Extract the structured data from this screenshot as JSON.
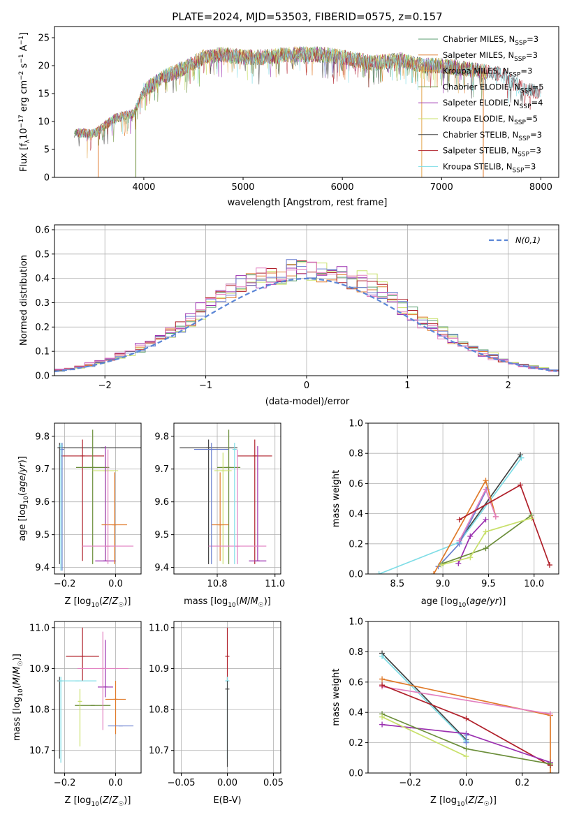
{
  "page": {
    "title": "PLATE=2024, MJD=53503, FIBERID=0575, z=0.157"
  },
  "chart_data": [
    {
      "id": "spectrum",
      "type": "line",
      "title": "PLATE=2024, MJD=53503, FIBERID=0575, z=0.157",
      "xlabel": "wavelength [Angstrom, rest frame]",
      "ylabel": "Flux [f_λ 10^-17 erg cm^-2 s^-1 A^-1]",
      "xlim": [
        3100,
        8180
      ],
      "ylim": [
        0,
        27
      ],
      "xticks": [
        4000,
        5000,
        6000,
        7000,
        8000
      ],
      "yticks": [
        0,
        5,
        10,
        15,
        20,
        25
      ],
      "continuum": {
        "x": [
          3300,
          3500,
          3700,
          3900,
          4000,
          4200,
          4400,
          4600,
          4800,
          5000,
          5200,
          5500,
          5800,
          6000,
          6300,
          6600,
          6800,
          7000,
          7200,
          7400,
          7600,
          7800,
          8000
        ],
        "y": [
          8.0,
          7.8,
          10.5,
          11.5,
          15.5,
          18.0,
          19.5,
          21.5,
          22.0,
          21.5,
          21.5,
          22.0,
          22.0,
          21.5,
          20.5,
          21.0,
          20.0,
          20.0,
          19.5,
          19.0,
          18.5,
          16.0,
          15.0
        ]
      },
      "legend": {
        "position": "upper-right",
        "entries": [
          {
            "pre": "Chabrier MILES, N",
            "sub": "SSP",
            "post": "=3",
            "color": "#5a9e6f"
          },
          {
            "pre": "Salpeter MILES, N",
            "sub": "SSP",
            "post": "=3",
            "color": "#e07a2a"
          },
          {
            "pre": "Kroupa MILES, N",
            "sub": "SSP",
            "post": "=3",
            "color": "#e3a64d"
          },
          {
            "pre": "Chabrier ELODIE, N",
            "sub": "SSP",
            "post": "=5",
            "color": "#6b8e3a"
          },
          {
            "pre": "Salpeter ELODIE, N",
            "sub": "SSP",
            "post": "=4",
            "color": "#9b30b0"
          },
          {
            "pre": "Kroupa ELODIE, N",
            "sub": "SSP",
            "post": "=5",
            "color": "#c8e06a"
          },
          {
            "pre": "Chabrier STELIB, N",
            "sub": "SSP",
            "post": "=3",
            "color": "#444444"
          },
          {
            "pre": "Salpeter STELIB, N",
            "sub": "SSP",
            "post": "=3",
            "color": "#b0202a"
          },
          {
            "pre": "Kroupa STELIB, N",
            "sub": "SSP",
            "post": "=3",
            "color": "#7fdde6"
          }
        ]
      }
    },
    {
      "id": "residuals",
      "type": "line",
      "xlabel": "(data-model)/error",
      "ylabel": "Normed distribution",
      "xlim": [
        -2.5,
        2.5
      ],
      "ylim": [
        0,
        0.62
      ],
      "xticks": [
        -2,
        -1,
        0,
        1,
        2
      ],
      "yticks": [
        0.0,
        0.1,
        0.2,
        0.3,
        0.4,
        0.5,
        0.6
      ],
      "grid": true,
      "legend": {
        "position": "upper-right",
        "label": "N(0,1)",
        "color": "#5b86d6"
      },
      "bin_width": 0.1,
      "histograms": [
        {
          "color": "#e07a2a",
          "offset": 0.03
        },
        {
          "color": "#5a9e6f",
          "offset": -0.02
        },
        {
          "color": "#9b30b0",
          "offset": 0.05
        },
        {
          "color": "#c8e06a",
          "offset": -0.04
        },
        {
          "color": "#b0202a",
          "offset": 0.02
        },
        {
          "color": "#6a7fcf",
          "offset": -0.01
        },
        {
          "color": "#e27fc0",
          "offset": 0.04
        }
      ]
    },
    {
      "id": "age-vs-z",
      "type": "scatter",
      "xlabel": "Z [log10(Z/Z☉)]",
      "ylabel": "age [log10(age/yr)]",
      "xlim": [
        -0.24,
        0.1
      ],
      "ylim": [
        9.38,
        9.84
      ],
      "xticks": [
        -0.2,
        0.0
      ],
      "yticks": [
        9.4,
        9.5,
        9.6,
        9.7,
        9.8
      ],
      "points": [
        {
          "x": -0.22,
          "y": 9.765,
          "xerr": 0.0,
          "yerr": [
            9.41,
            9.78
          ],
          "color": "#444444"
        },
        {
          "x": -0.05,
          "y": 9.765,
          "xerr": 0.17,
          "yerr": [
            9.765,
            9.765
          ],
          "color": "#444444"
        },
        {
          "x": -0.13,
          "y": 9.74,
          "xerr": 0.085,
          "yerr": [
            9.42,
            9.79
          ],
          "color": "#b0202a"
        },
        {
          "x": -0.09,
          "y": 9.705,
          "xerr": 0.065,
          "yerr": [
            9.41,
            9.82
          ],
          "color": "#6b8e3a"
        },
        {
          "x": -0.04,
          "y": 9.695,
          "xerr": 0.05,
          "yerr": [
            9.42,
            9.75
          ],
          "color": "#c8e06a"
        },
        {
          "x": -0.04,
          "y": 9.42,
          "xerr": 0.04,
          "yerr": [
            9.42,
            9.77
          ],
          "color": "#9b30b0"
        },
        {
          "x": -0.005,
          "y": 9.53,
          "xerr": 0.05,
          "yerr": [
            9.41,
            9.69
          ],
          "color": "#e07a2a"
        },
        {
          "x": -0.03,
          "y": 9.465,
          "xerr": 0.1,
          "yerr": [
            9.41,
            9.76
          ],
          "color": "#e27fc0"
        },
        {
          "x": -0.21,
          "y": 9.76,
          "xerr": 0.0,
          "yerr": [
            9.39,
            9.78
          ],
          "color": "#6a7fcf"
        },
        {
          "x": -0.215,
          "y": 9.77,
          "xerr": 0.0,
          "yerr": [
            9.39,
            9.78
          ],
          "color": "#7fdde6"
        }
      ]
    },
    {
      "id": "age-vs-mass",
      "type": "scatter",
      "xlabel": "mass [log10(M/M☉)]",
      "ylabel": "",
      "xlim": [
        10.65,
        11.02
      ],
      "ylim": [
        9.38,
        9.84
      ],
      "xticks": [
        10.8,
        11.0
      ],
      "yticks": [
        9.4,
        9.5,
        9.6,
        9.7,
        9.8
      ],
      "points": [
        {
          "x": 10.77,
          "y": 9.765,
          "xerr": 0.1,
          "yerr": [
            9.41,
            9.79
          ],
          "color": "#444444"
        },
        {
          "x": 10.93,
          "y": 9.74,
          "xerr": 0.06,
          "yerr": [
            9.41,
            9.79
          ],
          "color": "#b0202a"
        },
        {
          "x": 10.84,
          "y": 9.705,
          "xerr": 0.04,
          "yerr": [
            9.41,
            9.82
          ],
          "color": "#6b8e3a"
        },
        {
          "x": 10.82,
          "y": 9.695,
          "xerr": 0.03,
          "yerr": [
            9.41,
            9.75
          ],
          "color": "#c8e06a"
        },
        {
          "x": 10.94,
          "y": 9.42,
          "xerr": 0.03,
          "yerr": [
            9.42,
            9.77
          ],
          "color": "#9b30b0"
        },
        {
          "x": 10.81,
          "y": 9.53,
          "xerr": 0.03,
          "yerr": [
            9.42,
            9.69
          ],
          "color": "#e07a2a"
        },
        {
          "x": 10.87,
          "y": 9.465,
          "xerr": 0.1,
          "yerr": [
            9.41,
            9.76
          ],
          "color": "#e27fc0"
        },
        {
          "x": 10.78,
          "y": 9.76,
          "xerr": 0.06,
          "yerr": [
            9.41,
            9.78
          ],
          "color": "#6a7fcf"
        },
        {
          "x": 10.86,
          "y": 9.76,
          "xerr": 0.0,
          "yerr": [
            9.41,
            9.78
          ],
          "color": "#7fdde6"
        }
      ]
    },
    {
      "id": "weight-vs-age",
      "type": "line",
      "xlabel": "age [log10(age/yr)]",
      "ylabel": "mass weight",
      "xlim": [
        8.18,
        10.27
      ],
      "ylim": [
        0.0,
        1.0
      ],
      "xticks": [
        8.5,
        9.0,
        9.5,
        10.0
      ],
      "yticks": [
        0.0,
        0.2,
        0.4,
        0.6,
        0.8,
        1.0
      ],
      "grid": true,
      "series": [
        {
          "color": "#444444",
          "x": [
            9.18,
            9.85
          ],
          "y": [
            0.22,
            0.79
          ]
        },
        {
          "color": "#7fdde6",
          "x": [
            8.3,
            9.18,
            9.86
          ],
          "y": [
            0.0,
            0.21,
            0.77
          ]
        },
        {
          "color": "#6a7fcf",
          "x": [
            8.95,
            9.18,
            9.48
          ],
          "y": [
            0.05,
            0.2,
            0.56
          ]
        },
        {
          "color": "#e07a2a",
          "x": [
            8.9,
            9.47,
            9.58
          ],
          "y": [
            0.0,
            0.62,
            0.38
          ]
        },
        {
          "color": "#e27fc0",
          "x": [
            9.18,
            9.47,
            9.58
          ],
          "y": [
            0.22,
            0.56,
            0.38
          ]
        },
        {
          "color": "#b0202a",
          "x": [
            9.18,
            9.85,
            10.17
          ],
          "y": [
            0.36,
            0.59,
            0.06
          ]
        },
        {
          "color": "#9b30b0",
          "x": [
            9.17,
            9.3,
            9.47
          ],
          "y": [
            0.07,
            0.25,
            0.36
          ]
        },
        {
          "color": "#6b8e3a",
          "x": [
            9.0,
            9.47,
            9.97
          ],
          "y": [
            0.07,
            0.17,
            0.39
          ]
        },
        {
          "color": "#c8e06a",
          "x": [
            8.98,
            9.3,
            9.47,
            9.97
          ],
          "y": [
            0.06,
            0.11,
            0.28,
            0.37
          ]
        }
      ]
    },
    {
      "id": "mass-vs-z",
      "type": "scatter",
      "xlabel": "Z [log10(Z/Z☉)]",
      "ylabel": "mass [log10(M/M☉)]",
      "xlim": [
        -0.24,
        0.1
      ],
      "ylim": [
        10.645,
        11.015
      ],
      "xticks": [
        -0.2,
        0.0
      ],
      "yticks": [
        10.7,
        10.8,
        10.9,
        11.0
      ],
      "points": [
        {
          "x": -0.22,
          "y": 10.87,
          "xerr": 0.0,
          "yerr": [
            10.68,
            10.88
          ],
          "color": "#444444"
        },
        {
          "x": -0.13,
          "y": 10.93,
          "xerr": 0.065,
          "yerr": [
            10.87,
            11.0
          ],
          "color": "#b0202a"
        },
        {
          "x": -0.09,
          "y": 10.81,
          "xerr": 0.07,
          "yerr": [
            10.81,
            10.81
          ],
          "color": "#6b8e3a"
        },
        {
          "x": -0.14,
          "y": 10.82,
          "xerr": 0.0,
          "yerr": [
            10.71,
            10.85
          ],
          "color": "#c8e06a"
        },
        {
          "x": -0.04,
          "y": 10.855,
          "xerr": 0.03,
          "yerr": [
            10.83,
            10.97
          ],
          "color": "#9b30b0"
        },
        {
          "x": 0.0,
          "y": 10.825,
          "xerr": 0.04,
          "yerr": [
            10.74,
            10.87
          ],
          "color": "#e07a2a"
        },
        {
          "x": -0.05,
          "y": 10.9,
          "xerr": 0.1,
          "yerr": [
            10.75,
            10.99
          ],
          "color": "#e27fc0"
        },
        {
          "x": 0.02,
          "y": 10.76,
          "xerr": 0.05,
          "yerr": [
            10.76,
            10.76
          ],
          "color": "#6a7fcf"
        },
        {
          "x": -0.15,
          "y": 10.87,
          "xerr": 0.075,
          "yerr": [
            10.87,
            10.87
          ],
          "color": "#7fdde6"
        },
        {
          "x": -0.215,
          "y": 10.87,
          "xerr": 0.0,
          "yerr": [
            10.67,
            10.88
          ],
          "color": "#7fdde6"
        }
      ]
    },
    {
      "id": "mass-vs-ebv",
      "type": "scatter",
      "xlabel": "E(B-V)",
      "ylabel": "",
      "xlim": [
        -0.058,
        0.058
      ],
      "ylim": [
        10.645,
        11.015
      ],
      "xticks": [
        -0.05,
        0.0,
        0.05
      ],
      "yticks": [
        10.7,
        10.8,
        10.9,
        11.0
      ],
      "points": [
        {
          "x": 0.0,
          "y": 10.93,
          "xerr": 0.0,
          "yerr": [
            10.87,
            11.0
          ],
          "color": "#b0202a"
        },
        {
          "x": 0.0,
          "y": 10.87,
          "xerr": 0.0,
          "yerr": [
            10.68,
            10.88
          ],
          "color": "#7fdde6"
        },
        {
          "x": 0.0,
          "y": 10.85,
          "xerr": 0.0,
          "yerr": [
            10.66,
            10.87
          ],
          "color": "#444444"
        }
      ]
    },
    {
      "id": "weight-vs-z",
      "type": "line",
      "xlabel": "Z [log10(Z/Z☉)]",
      "ylabel": "mass weight",
      "xlim": [
        -0.35,
        0.33
      ],
      "ylim": [
        0.0,
        1.0
      ],
      "xticks": [
        -0.2,
        0.0,
        0.2
      ],
      "yticks": [
        0.0,
        0.2,
        0.4,
        0.6,
        0.8,
        1.0
      ],
      "grid": true,
      "series": [
        {
          "color": "#444444",
          "x": [
            -0.3,
            0.0
          ],
          "y": [
            0.79,
            0.22
          ]
        },
        {
          "color": "#7fdde6",
          "x": [
            -0.3,
            0.0
          ],
          "y": [
            0.77,
            0.21
          ]
        },
        {
          "color": "#e07a2a",
          "x": [
            -0.3,
            0.3,
            0.3
          ],
          "y": [
            0.62,
            0.38,
            0.0
          ]
        },
        {
          "color": "#e27fc0",
          "x": [
            -0.3,
            0.3
          ],
          "y": [
            0.57,
            0.39
          ]
        },
        {
          "color": "#b0202a",
          "x": [
            -0.3,
            0.0,
            0.3
          ],
          "y": [
            0.58,
            0.36,
            0.05
          ]
        },
        {
          "color": "#9b30b0",
          "x": [
            -0.3,
            0.0,
            0.3
          ],
          "y": [
            0.32,
            0.26,
            0.07
          ]
        },
        {
          "color": "#6b8e3a",
          "x": [
            -0.3,
            0.0,
            0.3
          ],
          "y": [
            0.39,
            0.16,
            0.06
          ]
        },
        {
          "color": "#c8e06a",
          "x": [
            -0.3,
            0.0
          ],
          "y": [
            0.37,
            0.11
          ]
        },
        {
          "color": "#6a7fcf",
          "x": [
            0.0,
            0.0
          ],
          "y": [
            0.2,
            0.25
          ]
        }
      ]
    }
  ]
}
